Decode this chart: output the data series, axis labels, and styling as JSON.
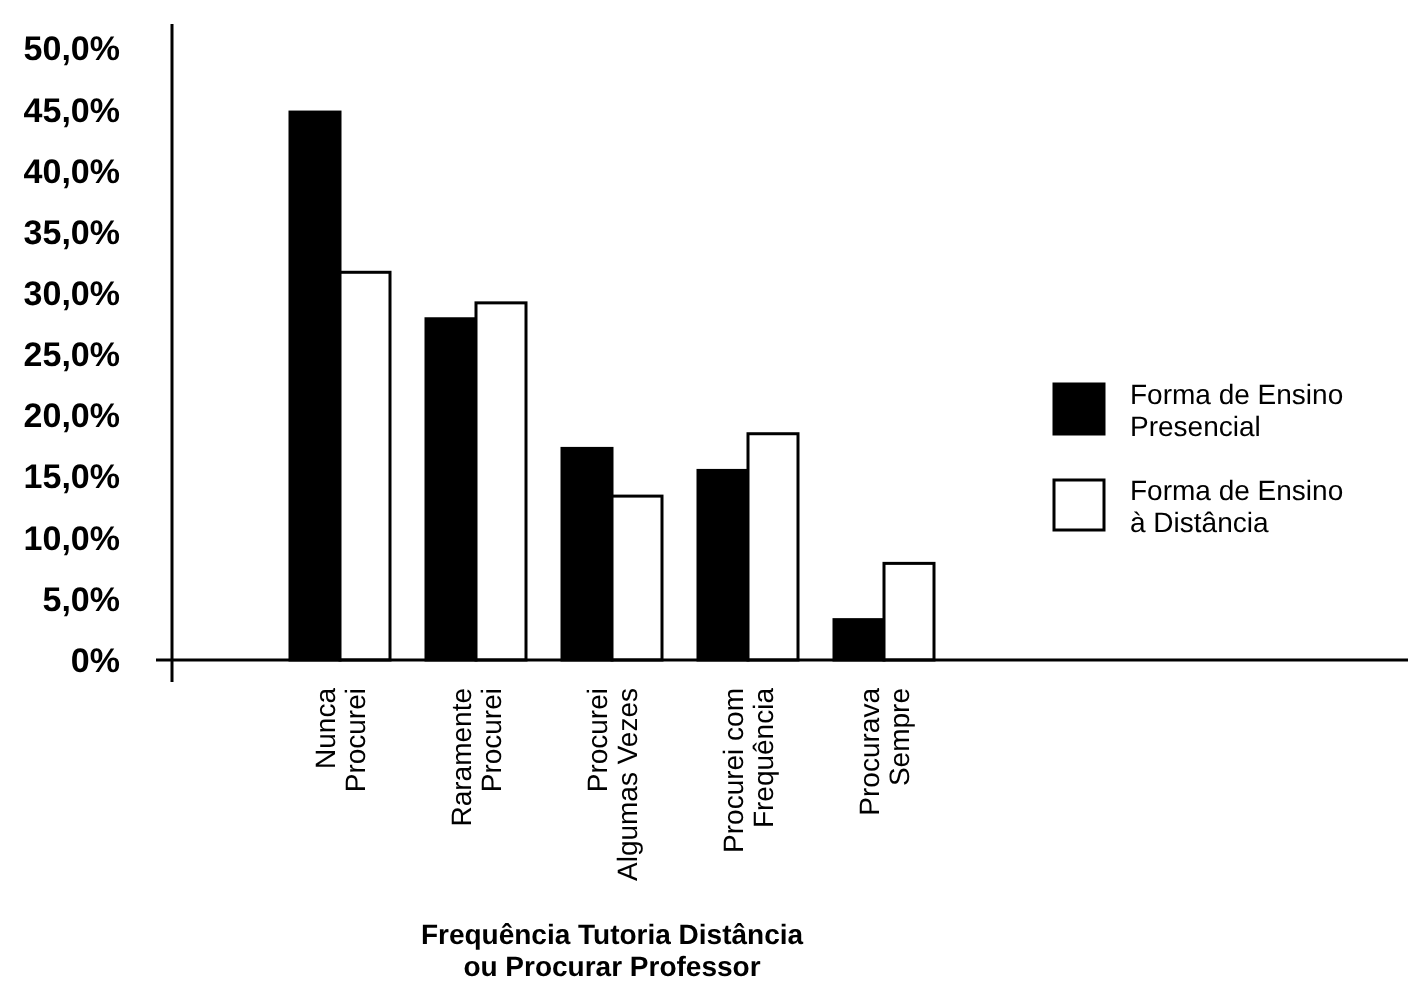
{
  "chart_data": {
    "type": "bar",
    "xlabel": "Frequência Tutoria Distância\nou Procurar Professor",
    "categories": [
      "Nunca\nProcurei",
      "Raramente\nProcurei",
      "Procurei\nAlgumas Vezes",
      "Procurei com\nFrequência",
      "Procurava\nSempre"
    ],
    "series": [
      {
        "name": "Forma de Ensino\nPresencial",
        "color": "#000000",
        "values": [
          44.8,
          27.9,
          17.3,
          15.5,
          3.3
        ]
      },
      {
        "name": "Forma de Ensino\nà Distância",
        "color": "#ffffff",
        "values": [
          31.7,
          29.2,
          13.4,
          18.5,
          7.9
        ]
      }
    ],
    "ylim": [
      0,
      52
    ],
    "yticks": [
      {
        "value": 0,
        "label": "0%"
      },
      {
        "value": 5,
        "label": "5,0%"
      },
      {
        "value": 10,
        "label": "10,0%"
      },
      {
        "value": 15,
        "label": "15,0%"
      },
      {
        "value": 20,
        "label": "20,0%"
      },
      {
        "value": 25,
        "label": "25,0%"
      },
      {
        "value": 30,
        "label": "30,0%"
      },
      {
        "value": 35,
        "label": "35,0%"
      },
      {
        "value": 40,
        "label": "40,0%"
      },
      {
        "value": 45,
        "label": "45,0%"
      },
      {
        "value": 50,
        "label": "50,0%"
      }
    ],
    "grid": false,
    "legend": "right"
  }
}
